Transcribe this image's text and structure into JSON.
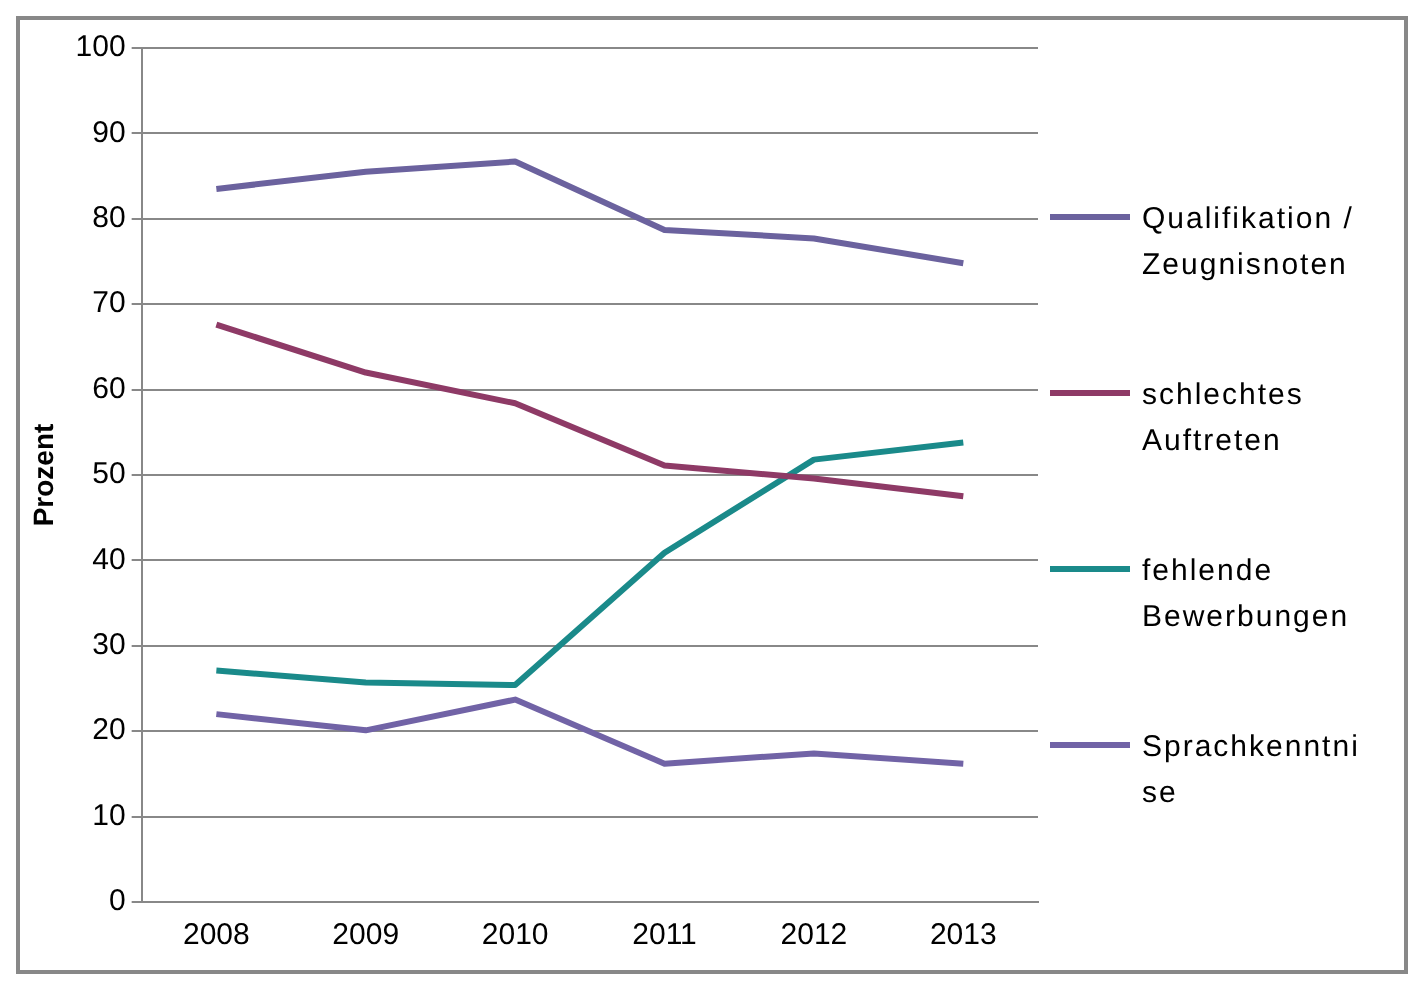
{
  "chart_data": {
    "type": "line",
    "ylabel": "Prozent",
    "categories": [
      "2008",
      "2009",
      "2010",
      "2011",
      "2012",
      "2013"
    ],
    "series": [
      {
        "name": "Qualifikation / Zeugnisnoten",
        "color": "#6b629e",
        "values": [
          83.5,
          85.5,
          86.7,
          78.7,
          77.7,
          74.8
        ]
      },
      {
        "name": "schlechtes Auftreten",
        "color": "#8e3a66",
        "values": [
          67.6,
          62,
          58.4,
          51.1,
          49.6,
          47.5
        ]
      },
      {
        "name": "fehlende Bewerbungen",
        "color": "#1a8a8a",
        "values": [
          27.1,
          25.7,
          25.4,
          40.9,
          51.8,
          53.8
        ]
      },
      {
        "name": "Sprachkenntnise",
        "color": "#7163a6",
        "values": [
          22,
          20.1,
          23.7,
          16.2,
          17.4,
          16.2
        ]
      }
    ],
    "ylim": [
      0,
      100
    ],
    "yticks": [
      0,
      10,
      20,
      30,
      40,
      50,
      60,
      70,
      80,
      90,
      100
    ],
    "grid": "y",
    "legend": "right",
    "marker": "none",
    "line_style": "solid"
  }
}
